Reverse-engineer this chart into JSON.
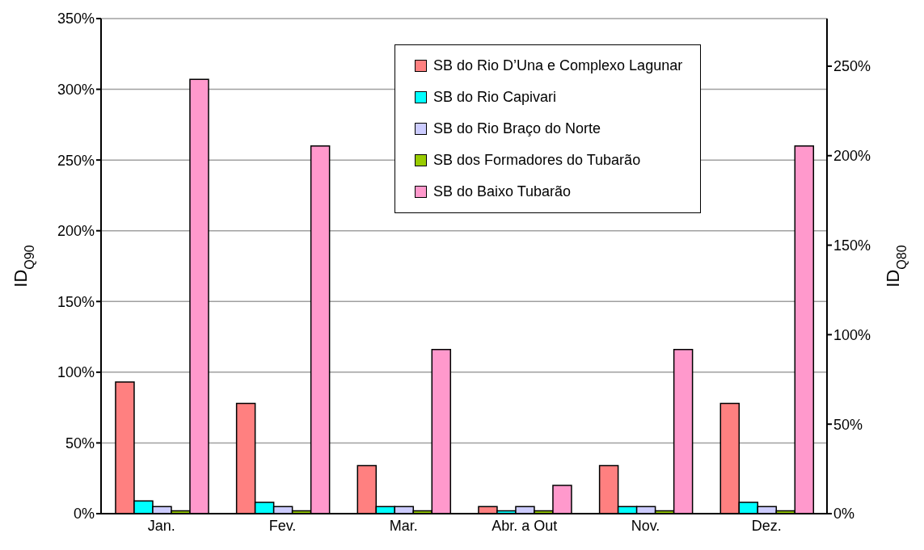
{
  "chart_data": {
    "type": "bar",
    "ylabel": "ID$_{Q90}$",
    "y2label": "ID$_{Q80}$",
    "categories": [
      "Jan.",
      "Fev.",
      "Mar.",
      "Abr. a Out",
      "Nov.",
      "Dez."
    ],
    "series": [
      {
        "name": "SB do Rio D’Una e Complexo Lagunar",
        "color": "#ff8080",
        "values": [
          93,
          78,
          34,
          5,
          34,
          78
        ]
      },
      {
        "name": "SB do Rio Capivari",
        "color": "#00ffff",
        "values": [
          9,
          8,
          5,
          2,
          5,
          8
        ]
      },
      {
        "name": "SB do Rio Braço do Norte",
        "color": "#ccccff",
        "values": [
          5,
          5,
          5,
          5,
          5,
          5
        ]
      },
      {
        "name": "SB dos Formadores do Tubarão",
        "color": "#99cc00",
        "values": [
          2,
          2,
          2,
          2,
          2,
          2
        ]
      },
      {
        "name": "SB do Baixo Tubarão",
        "color": "#ff99cc",
        "values": [
          307,
          260,
          116,
          20,
          116,
          260
        ]
      }
    ],
    "ylim": [
      0,
      350
    ],
    "yticks": [
      {
        "value": 0,
        "label": "0%"
      },
      {
        "value": 50,
        "label": "50%"
      },
      {
        "value": 100,
        "label": "100%"
      },
      {
        "value": 150,
        "label": "150%"
      },
      {
        "value": 200,
        "label": "200%"
      },
      {
        "value": 250,
        "label": "250%"
      },
      {
        "value": 300,
        "label": "300%"
      },
      {
        "value": 350,
        "label": "350%"
      }
    ],
    "y2lim": [
      0,
      276.6
    ],
    "y2ticks": [
      {
        "value": 0,
        "label": "0%"
      },
      {
        "value": 50,
        "label": "50%"
      },
      {
        "value": 100,
        "label": "100%"
      },
      {
        "value": 150,
        "label": "150%"
      },
      {
        "value": 200,
        "label": "200%"
      },
      {
        "value": 250,
        "label": "250%"
      }
    ],
    "grid": "y",
    "legend": "top right"
  }
}
